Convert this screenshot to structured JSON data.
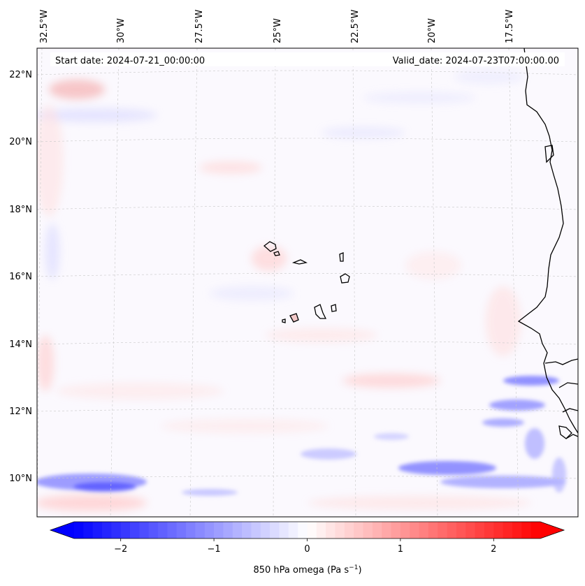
{
  "map": {
    "start_date_text": "Start date: 2024-07-21_00:00:00",
    "valid_date_text": "Valid_date: 2024-07-23T07:00:00.00",
    "lon_labels": [
      "32.5°W",
      "30°W",
      "27.5°W",
      "25°W",
      "22.5°W",
      "20°W",
      "17.5°W"
    ],
    "lat_labels": [
      "22°N",
      "20°N",
      "18°N",
      "16°N",
      "14°N",
      "12°N",
      "10°N"
    ],
    "lon_range": [
      -32.5,
      -15.0
    ],
    "lat_range": [
      9.0,
      22.8
    ],
    "gridlines": true,
    "features": [
      "Cape Verde islands",
      "West African coastline"
    ]
  },
  "colorbar": {
    "label_main": "850 hPa omega (Pa s",
    "label_exp": "−1",
    "label_end": ")",
    "ticks": [
      "−2",
      "−1",
      "0",
      "1",
      "2"
    ],
    "tick_values": [
      -2,
      -1,
      0,
      1,
      2
    ],
    "range": [
      -2.5,
      2.5
    ],
    "extend": "both",
    "colormap": "bwr",
    "color_low": "#0000ff",
    "color_mid": "#ffffff",
    "color_high": "#ff0000"
  }
}
